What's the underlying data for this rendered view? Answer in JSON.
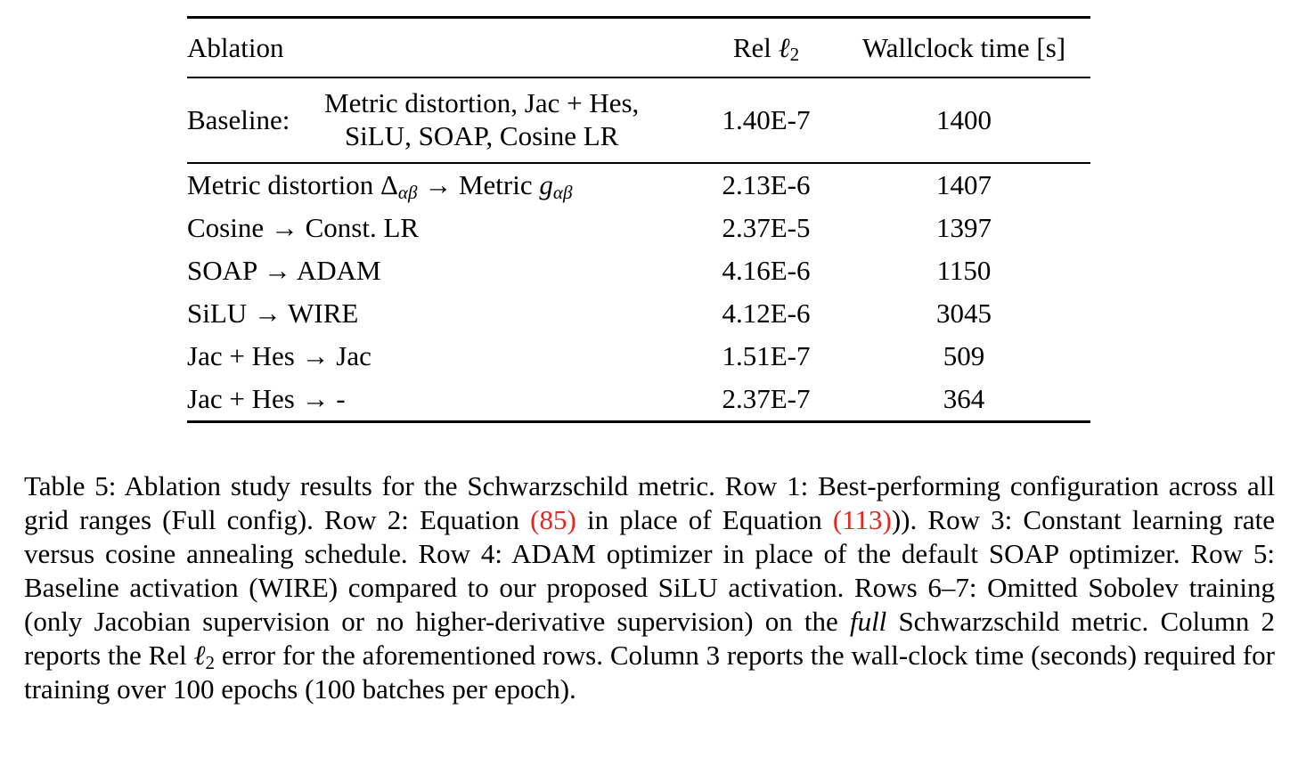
{
  "colors": {
    "background": "#ffffff",
    "text": "#000000",
    "equation_link_red": "#e8251f"
  },
  "table": {
    "headers": [
      {
        "parts": [
          {
            "t": "Ablation"
          }
        ]
      },
      {
        "parts": [
          {
            "t": "Rel "
          },
          {
            "t": "ℓ",
            "s": "mathit"
          },
          {
            "t": "2",
            "s": "sub"
          }
        ]
      },
      {
        "parts": [
          {
            "t": "Wallclock time [s]"
          }
        ]
      }
    ],
    "baseline": {
      "label": "Baseline:",
      "config_line1": "Metric distortion, Jac + Hes,",
      "config_line2": "SiLU, SOAP, Cosine LR",
      "rel_l2": "1.40E-7",
      "wallclock": "1400"
    },
    "rows": [
      {
        "label_parts": [
          {
            "t": "Metric distortion "
          },
          {
            "t": "Δ"
          },
          {
            "t": "αβ",
            "s": "subi"
          },
          {
            "t": " → Metric "
          },
          {
            "t": "g",
            "s": "mathit"
          },
          {
            "t": "αβ",
            "s": "subi"
          }
        ],
        "rel_l2": "2.13E-6",
        "wallclock": "1407"
      },
      {
        "label_parts": [
          {
            "t": "Cosine → Const. LR"
          }
        ],
        "rel_l2": "2.37E-5",
        "wallclock": "1397"
      },
      {
        "label_parts": [
          {
            "t": "SOAP → ADAM"
          }
        ],
        "rel_l2": "4.16E-6",
        "wallclock": "1150"
      },
      {
        "label_parts": [
          {
            "t": "SiLU → WIRE"
          }
        ],
        "rel_l2": "4.12E-6",
        "wallclock": "3045"
      },
      {
        "label_parts": [
          {
            "t": "Jac + Hes → Jac"
          }
        ],
        "rel_l2": "1.51E-7",
        "wallclock": "509"
      },
      {
        "label_parts": [
          {
            "t": "Jac + Hes → -"
          }
        ],
        "rel_l2": "2.37E-7",
        "wallclock": "364"
      }
    ]
  },
  "caption": {
    "parts": [
      {
        "t": "Table 5: Ablation study results for the Schwarzschild metric. Row 1: Best-performing configuration across all grid ranges (Full config).  Row 2:  Equation "
      },
      {
        "t": "(85)",
        "s": "link"
      },
      {
        "t": " in place of Equation "
      },
      {
        "t": "(113)",
        "s": "link"
      },
      {
        "t": ")).  Row 3:  Constant learning rate versus cosine annealing schedule.  Row 4:  ADAM optimizer in place of the default SOAP optimizer.  Row 5:  Baseline activation (WIRE) compared to our proposed SiLU activation.  Rows 6–7:  Omitted Sobolev training (only Jacobian supervision or no higher-derivative supervision) on the "
      },
      {
        "t": "full",
        "s": "italic"
      },
      {
        "t": " Schwarzschild metric. Column 2 reports the Rel "
      },
      {
        "t": "ℓ",
        "s": "mathit"
      },
      {
        "t": "2",
        "s": "sub"
      },
      {
        "t": " error for the aforementioned rows. Column 3 reports the wall-clock time (seconds) required for training over 100 epochs (100 batches per epoch)."
      }
    ]
  }
}
